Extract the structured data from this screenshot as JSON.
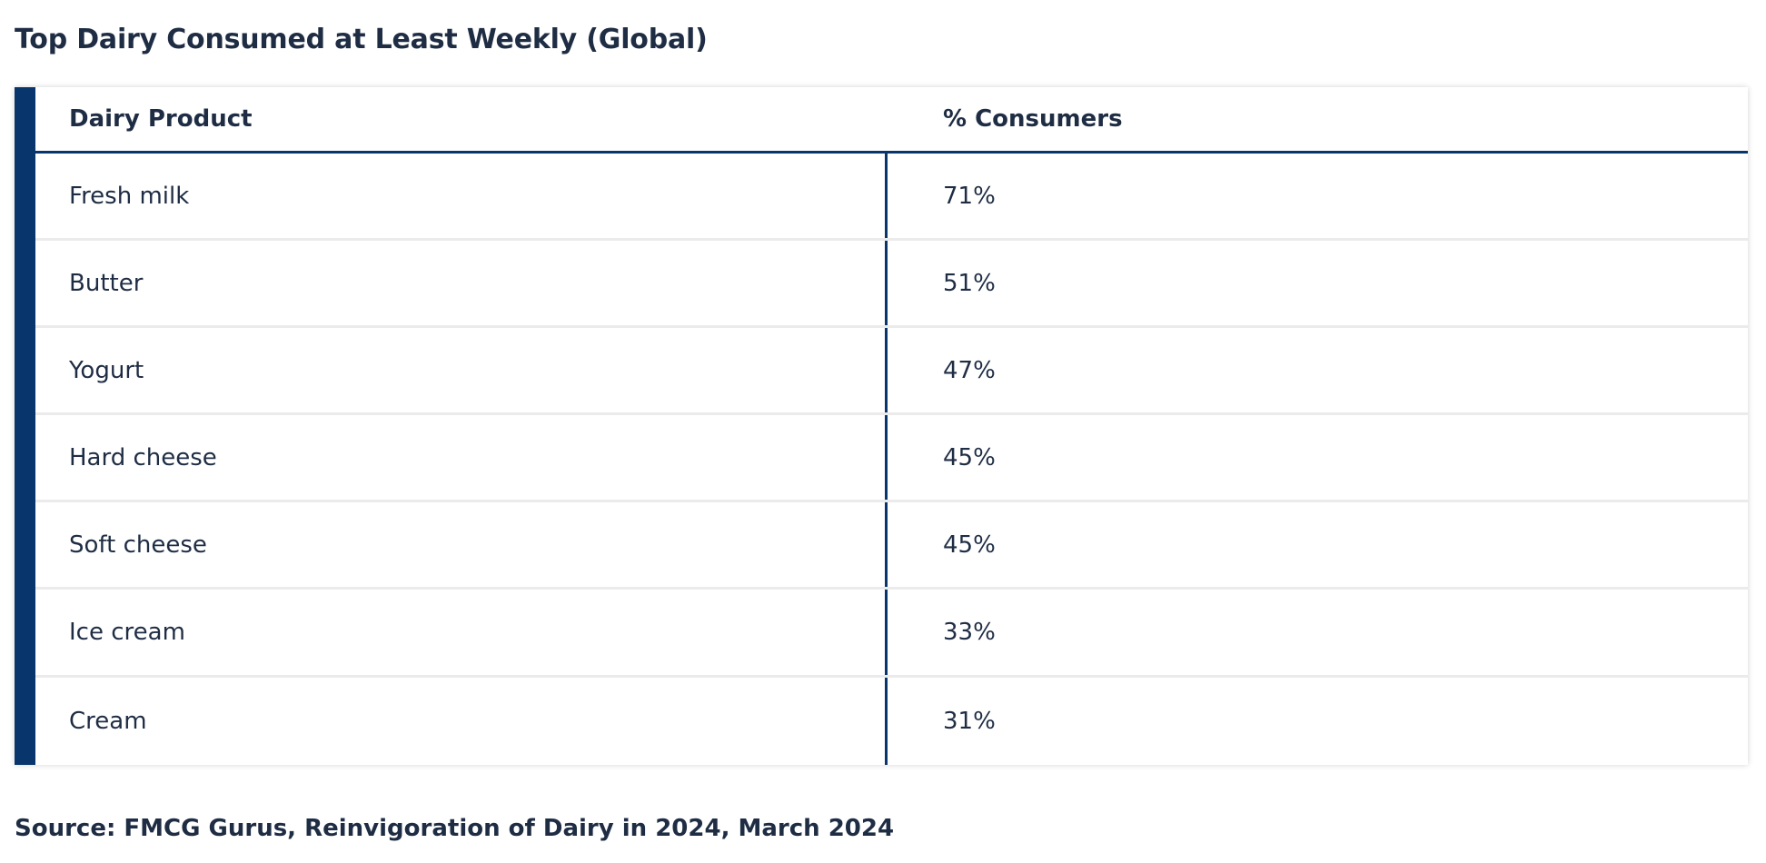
{
  "title": "Top Dairy Consumed at Least Weekly (Global)",
  "colors": {
    "accent": "#08356b",
    "text": "#1f2d44",
    "row_separator": "#ebebeb"
  },
  "table": {
    "headers": {
      "product": "Dairy Product",
      "percent": "% Consumers"
    },
    "rows": [
      {
        "product": "Fresh milk",
        "percent": "71%"
      },
      {
        "product": "Butter",
        "percent": "51%"
      },
      {
        "product": "Yogurt",
        "percent": "47%"
      },
      {
        "product": "Hard cheese",
        "percent": "45%"
      },
      {
        "product": "Soft cheese",
        "percent": "45%"
      },
      {
        "product": "Ice cream",
        "percent": "33%"
      },
      {
        "product": "Cream",
        "percent": "31%"
      }
    ]
  },
  "source": "Source: FMCG Gurus, Reinvigoration of Dairy in 2024, March 2024"
}
